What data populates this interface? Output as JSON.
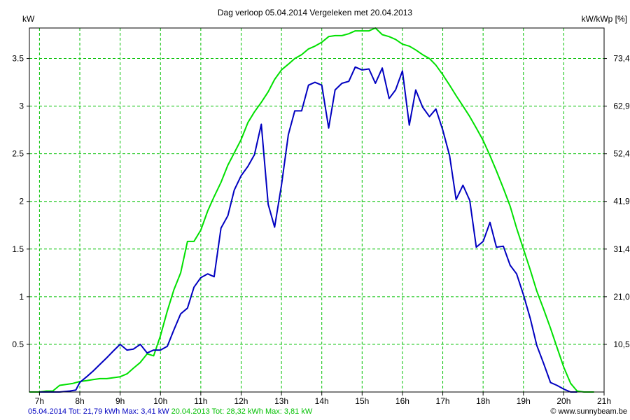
{
  "chart_data": {
    "type": "line",
    "title": "Dag  verloop 05.04.2014   Vergeleken met 20.04.2013",
    "ylabel_left": "kW",
    "ylabel_right": "kW/kWp [%]",
    "xlim": [
      6.75,
      21
    ],
    "ylim": [
      0,
      3.82
    ],
    "x_ticks": [
      {
        "x": 7,
        "label": "7h"
      },
      {
        "x": 8,
        "label": "8h"
      },
      {
        "x": 9,
        "label": "9h"
      },
      {
        "x": 10,
        "label": "10h"
      },
      {
        "x": 11,
        "label": "11h"
      },
      {
        "x": 12,
        "label": "12h"
      },
      {
        "x": 13,
        "label": "13h"
      },
      {
        "x": 14,
        "label": "14h"
      },
      {
        "x": 15,
        "label": "15h"
      },
      {
        "x": 16,
        "label": "16h"
      },
      {
        "x": 17,
        "label": "17h"
      },
      {
        "x": 18,
        "label": "18h"
      },
      {
        "x": 19,
        "label": "19h"
      },
      {
        "x": 20,
        "label": "20h"
      },
      {
        "x": 21,
        "label": "21h"
      }
    ],
    "y_ticks_left": [
      {
        "v": 0.5,
        "label": "0.5"
      },
      {
        "v": 1,
        "label": "1"
      },
      {
        "v": 1.5,
        "label": "1.5"
      },
      {
        "v": 2,
        "label": "2"
      },
      {
        "v": 2.5,
        "label": "2.5"
      },
      {
        "v": 3,
        "label": "3"
      },
      {
        "v": 3.5,
        "label": "3.5"
      }
    ],
    "y_ticks_right": [
      {
        "v": 0.5,
        "label": "10,5"
      },
      {
        "v": 1,
        "label": "21,0"
      },
      {
        "v": 1.5,
        "label": "31,4"
      },
      {
        "v": 2,
        "label": "41,9"
      },
      {
        "v": 2.5,
        "label": "52,4"
      },
      {
        "v": 3,
        "label": "62,9"
      },
      {
        "v": 3.5,
        "label": "73,4"
      }
    ],
    "grid": true,
    "series": [
      {
        "name": "05.04.2014",
        "color": "#0000c0",
        "points": [
          [
            7.0,
            0.0
          ],
          [
            7.5,
            0.0
          ],
          [
            7.75,
            0.01
          ],
          [
            7.9,
            0.02
          ],
          [
            8.0,
            0.1
          ],
          [
            8.17,
            0.16
          ],
          [
            8.33,
            0.22
          ],
          [
            8.5,
            0.29
          ],
          [
            8.67,
            0.36
          ],
          [
            8.83,
            0.43
          ],
          [
            9.0,
            0.5
          ],
          [
            9.17,
            0.44
          ],
          [
            9.33,
            0.45
          ],
          [
            9.5,
            0.5
          ],
          [
            9.67,
            0.41
          ],
          [
            9.83,
            0.44
          ],
          [
            10.0,
            0.44
          ],
          [
            10.17,
            0.48
          ],
          [
            10.33,
            0.65
          ],
          [
            10.5,
            0.82
          ],
          [
            10.67,
            0.88
          ],
          [
            10.83,
            1.1
          ],
          [
            11.0,
            1.2
          ],
          [
            11.17,
            1.24
          ],
          [
            11.33,
            1.21
          ],
          [
            11.5,
            1.72
          ],
          [
            11.67,
            1.85
          ],
          [
            11.83,
            2.12
          ],
          [
            12.0,
            2.27
          ],
          [
            12.17,
            2.37
          ],
          [
            12.33,
            2.49
          ],
          [
            12.5,
            2.81
          ],
          [
            12.67,
            1.97
          ],
          [
            12.83,
            1.73
          ],
          [
            13.0,
            2.17
          ],
          [
            13.17,
            2.7
          ],
          [
            13.33,
            2.95
          ],
          [
            13.5,
            2.95
          ],
          [
            13.67,
            3.22
          ],
          [
            13.83,
            3.25
          ],
          [
            14.0,
            3.22
          ],
          [
            14.17,
            2.77
          ],
          [
            14.33,
            3.17
          ],
          [
            14.5,
            3.24
          ],
          [
            14.67,
            3.26
          ],
          [
            14.83,
            3.41
          ],
          [
            15.0,
            3.38
          ],
          [
            15.17,
            3.39
          ],
          [
            15.33,
            3.24
          ],
          [
            15.5,
            3.4
          ],
          [
            15.67,
            3.08
          ],
          [
            15.83,
            3.17
          ],
          [
            16.0,
            3.37
          ],
          [
            16.17,
            2.8
          ],
          [
            16.33,
            3.17
          ],
          [
            16.5,
            2.99
          ],
          [
            16.67,
            2.89
          ],
          [
            16.83,
            2.97
          ],
          [
            17.0,
            2.75
          ],
          [
            17.17,
            2.48
          ],
          [
            17.33,
            2.02
          ],
          [
            17.5,
            2.17
          ],
          [
            17.67,
            2.01
          ],
          [
            17.83,
            1.52
          ],
          [
            18.0,
            1.58
          ],
          [
            18.17,
            1.78
          ],
          [
            18.33,
            1.52
          ],
          [
            18.5,
            1.53
          ],
          [
            18.67,
            1.33
          ],
          [
            18.83,
            1.24
          ],
          [
            19.0,
            1.02
          ],
          [
            19.17,
            0.77
          ],
          [
            19.33,
            0.49
          ],
          [
            19.5,
            0.3
          ],
          [
            19.67,
            0.1
          ],
          [
            19.83,
            0.07
          ],
          [
            20.0,
            0.03
          ],
          [
            20.17,
            0.0
          ],
          [
            20.33,
            0.0
          ]
        ]
      },
      {
        "name": "20.04.2013",
        "color": "#00e000",
        "points": [
          [
            6.75,
            0.0
          ],
          [
            7.0,
            0.0
          ],
          [
            7.17,
            0.01
          ],
          [
            7.33,
            0.01
          ],
          [
            7.5,
            0.07
          ],
          [
            7.67,
            0.08
          ],
          [
            7.83,
            0.09
          ],
          [
            8.0,
            0.11
          ],
          [
            8.17,
            0.12
          ],
          [
            8.33,
            0.13
          ],
          [
            8.5,
            0.14
          ],
          [
            8.67,
            0.14
          ],
          [
            8.83,
            0.15
          ],
          [
            9.0,
            0.16
          ],
          [
            9.17,
            0.19
          ],
          [
            9.33,
            0.25
          ],
          [
            9.5,
            0.31
          ],
          [
            9.67,
            0.4
          ],
          [
            9.83,
            0.38
          ],
          [
            10.0,
            0.59
          ],
          [
            10.17,
            0.85
          ],
          [
            10.33,
            1.07
          ],
          [
            10.5,
            1.25
          ],
          [
            10.67,
            1.58
          ],
          [
            10.83,
            1.58
          ],
          [
            11.0,
            1.7
          ],
          [
            11.17,
            1.9
          ],
          [
            11.33,
            2.05
          ],
          [
            11.5,
            2.2
          ],
          [
            11.67,
            2.38
          ],
          [
            11.83,
            2.51
          ],
          [
            12.0,
            2.65
          ],
          [
            12.17,
            2.83
          ],
          [
            12.33,
            2.94
          ],
          [
            12.5,
            3.04
          ],
          [
            12.67,
            3.15
          ],
          [
            12.83,
            3.28
          ],
          [
            13.0,
            3.38
          ],
          [
            13.17,
            3.44
          ],
          [
            13.33,
            3.5
          ],
          [
            13.5,
            3.54
          ],
          [
            13.67,
            3.6
          ],
          [
            13.83,
            3.63
          ],
          [
            14.0,
            3.67
          ],
          [
            14.17,
            3.73
          ],
          [
            14.33,
            3.74
          ],
          [
            14.5,
            3.74
          ],
          [
            14.67,
            3.76
          ],
          [
            14.83,
            3.79
          ],
          [
            15.0,
            3.79
          ],
          [
            15.17,
            3.79
          ],
          [
            15.33,
            3.82
          ],
          [
            15.5,
            3.75
          ],
          [
            15.67,
            3.73
          ],
          [
            15.83,
            3.7
          ],
          [
            16.0,
            3.65
          ],
          [
            16.17,
            3.63
          ],
          [
            16.33,
            3.59
          ],
          [
            16.5,
            3.54
          ],
          [
            16.67,
            3.5
          ],
          [
            16.83,
            3.43
          ],
          [
            17.0,
            3.33
          ],
          [
            17.17,
            3.22
          ],
          [
            17.33,
            3.11
          ],
          [
            17.5,
            3.0
          ],
          [
            17.67,
            2.89
          ],
          [
            17.83,
            2.77
          ],
          [
            18.0,
            2.64
          ],
          [
            18.17,
            2.48
          ],
          [
            18.33,
            2.32
          ],
          [
            18.5,
            2.14
          ],
          [
            18.67,
            1.95
          ],
          [
            18.83,
            1.72
          ],
          [
            19.0,
            1.5
          ],
          [
            19.17,
            1.28
          ],
          [
            19.33,
            1.06
          ],
          [
            19.5,
            0.87
          ],
          [
            19.67,
            0.67
          ],
          [
            19.83,
            0.47
          ],
          [
            20.0,
            0.26
          ],
          [
            20.17,
            0.09
          ],
          [
            20.33,
            0.01
          ],
          [
            20.5,
            0.0
          ],
          [
            20.75,
            0.0
          ]
        ]
      }
    ]
  },
  "footer": {
    "blue_text": "05.04.2014 Tot: 21,79 kWh Max: 3,41 kW",
    "green_text": "20.04.2013 Tot: 28,32 kWh Max: 3,81 kW",
    "credit_symbol": "©",
    "credit_text": " www.sunnybeam.be",
    "blue_color": "#0000c0",
    "green_color": "#00c000"
  }
}
